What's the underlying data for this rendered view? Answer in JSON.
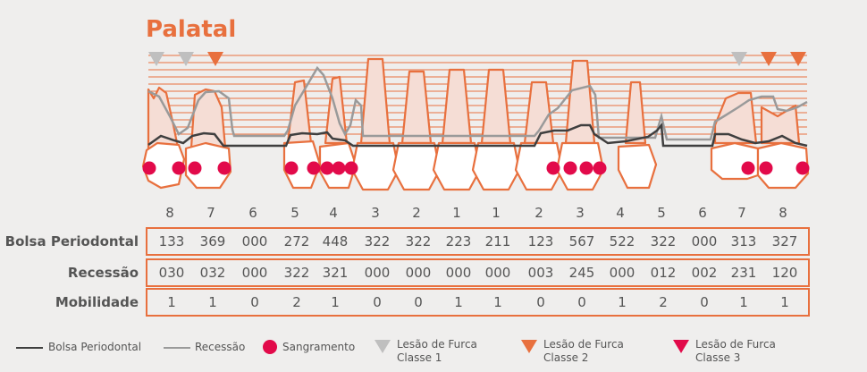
{
  "title": "Palatal",
  "tooth_numbers": [
    "8",
    "7",
    "6",
    "5",
    "4",
    "3",
    "2",
    "1",
    "1",
    "2",
    "3",
    "4",
    "5",
    "6",
    "7",
    "8"
  ],
  "rows": [
    {
      "label": "Bolsa Periodontal",
      "values": [
        "133",
        "369",
        "000",
        "272",
        "448",
        "322",
        "322",
        "223",
        "211",
        "123",
        "567",
        "522",
        "322",
        "000",
        "313",
        "327"
      ]
    },
    {
      "label": "Recessão",
      "values": [
        "030",
        "032",
        "000",
        "322",
        "321",
        "000",
        "000",
        "000",
        "000",
        "003",
        "245",
        "000",
        "012",
        "002",
        "231",
        "120"
      ]
    },
    {
      "label": "Mobilidade",
      "values": [
        "1",
        "1",
        "0",
        "2",
        "1",
        "0",
        "0",
        "1",
        "1",
        "0",
        "0",
        "1",
        "2",
        "0",
        "1",
        "1"
      ]
    }
  ],
  "legend": {
    "bolsa": "Bolsa Periodontal",
    "recessao": "Recessão",
    "sangramento": "Sangramento",
    "furca1_a": "Lesão de Furca",
    "furca1_b": "Classe 1",
    "furca2_a": "Lesão de Furca",
    "furca2_b": "Classe 2",
    "furca3_a": "Lesão de Furca",
    "furca3_b": "Classe 3"
  },
  "colors": {
    "orange": "#e8703e",
    "dark_line": "#3f3f3f",
    "gray_line": "#9a9a9a",
    "bleeding": "#e20a4a",
    "furca1": "#bfbfbf",
    "furca2": "#e8703e",
    "furca3": "#e20a4a",
    "tooth_fill": "#ffffff",
    "root_fill": "#f5ddd5"
  }
}
